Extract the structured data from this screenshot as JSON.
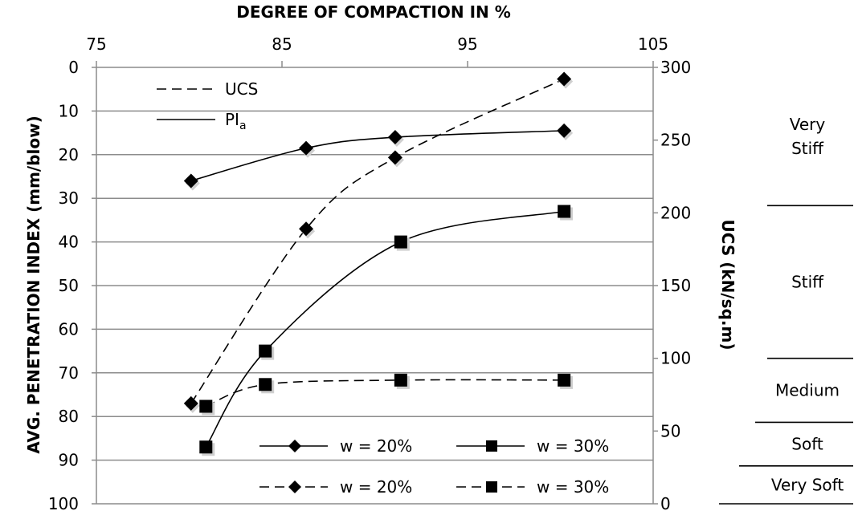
{
  "chart_data": {
    "type": "line",
    "title": "",
    "x_axis": {
      "label": "DEGREE  OF COMPACTION  IN %",
      "position": "top",
      "min": 75,
      "max": 105,
      "ticks": [
        "75",
        "85",
        "95",
        "105"
      ]
    },
    "y_left": {
      "label": "AVG. PENETRATION  INDEX  (mm/blow)",
      "min": 0,
      "max": 100,
      "reversed": true,
      "ticks": [
        "0",
        "10",
        "20",
        "30",
        "40",
        "50",
        "60",
        "70",
        "80",
        "90",
        "100"
      ]
    },
    "y_right": {
      "label": "UCS  (kN/sq.m)",
      "min": 0,
      "max": 300,
      "ticks": [
        "0",
        "50",
        "100",
        "150",
        "200",
        "250",
        "300"
      ]
    },
    "grid": "horizontal",
    "legend_top": [
      {
        "style": "dashed",
        "label": "UCS"
      },
      {
        "style": "solid",
        "label": "PI",
        "sub": "a"
      }
    ],
    "legend_bottom": [
      {
        "style": "solid",
        "marker": "diamond",
        "label": "w = 20%"
      },
      {
        "style": "solid",
        "marker": "square",
        "label": "w = 30%"
      },
      {
        "style": "dashed",
        "marker": "diamond",
        "label": "w = 20%"
      },
      {
        "style": "dashed",
        "marker": "square",
        "label": "w = 30%"
      }
    ],
    "series": [
      {
        "label": "w = 20%",
        "quantity": "PIa",
        "axis": "left",
        "style": "solid",
        "marker": "diamond",
        "x": [
          80.1,
          86.3,
          91.1,
          100.2
        ],
        "y": [
          26,
          18.5,
          16,
          14.5
        ]
      },
      {
        "label": "w = 30%",
        "quantity": "PIa",
        "axis": "left",
        "style": "solid",
        "marker": "square",
        "x": [
          80.9,
          84.1,
          91.4,
          100.2
        ],
        "y": [
          87,
          65,
          40,
          33
        ]
      },
      {
        "label": "w = 20%",
        "quantity": "UCS",
        "axis": "right",
        "style": "dashed",
        "marker": "diamond",
        "x": [
          80.1,
          86.3,
          91.1,
          100.2
        ],
        "y": [
          69,
          189,
          238,
          292
        ]
      },
      {
        "label": "w = 30%",
        "quantity": "UCS",
        "axis": "right",
        "style": "dashed",
        "marker": "square",
        "x": [
          80.9,
          84.1,
          91.4,
          100.2
        ],
        "y": [
          67,
          82,
          85,
          85
        ]
      }
    ],
    "consistency_zones": [
      {
        "label": "Very Stiff",
        "from": 205,
        "to": 300
      },
      {
        "label": "Stiff",
        "from": 100,
        "to": 205
      },
      {
        "label": "Medium",
        "from": 56,
        "to": 100
      },
      {
        "label": "Soft",
        "from": 26,
        "to": 56
      },
      {
        "label": "Very Soft",
        "from": 0,
        "to": 26
      }
    ]
  }
}
